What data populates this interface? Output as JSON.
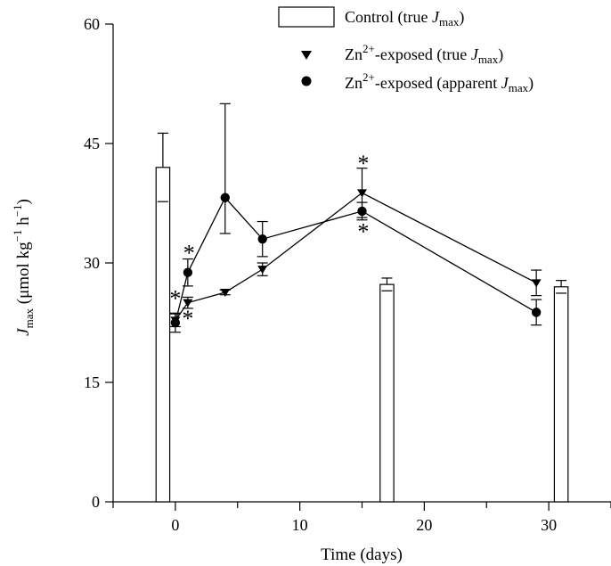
{
  "chart_data": {
    "type": "bar+line",
    "xlabel": "Time (days)",
    "ylabel": {
      "main": "J",
      "sub": "max",
      "units": " (μmol kg",
      "sup1": "−1",
      "units2": " h",
      "sup2": "−1",
      "close": ")"
    },
    "xlim": [
      -5,
      35
    ],
    "ylim": [
      0,
      60
    ],
    "xticks": [
      0,
      10,
      20,
      30
    ],
    "xminor": [
      -5,
      0,
      5,
      10,
      15,
      20,
      25,
      30,
      35
    ],
    "yticks": [
      0,
      15,
      30,
      45,
      60
    ],
    "legend": {
      "position": "top-right",
      "entries": [
        {
          "marker": "open-bar",
          "text": "Control (true ",
          "j": "J",
          "sub": "max",
          "tail": ")"
        },
        {
          "marker": "triangle-down",
          "pre": "Zn",
          "sup": "2+",
          "text": "-exposed (true ",
          "j": "J",
          "sub": "max",
          "tail": ")"
        },
        {
          "marker": "circle",
          "pre": "Zn",
          "sup": "2+",
          "text": "-exposed (apparent ",
          "j": "J",
          "sub": "max",
          "tail": ")"
        }
      ]
    },
    "control_bars": [
      {
        "x": -1,
        "value": 42,
        "err": 4.3
      },
      {
        "x": 17,
        "value": 27.3,
        "err": 0.8
      },
      {
        "x": 31,
        "value": 27,
        "err": 0.8
      }
    ],
    "series": [
      {
        "name": "Zn2+-exposed (true Jmax)",
        "marker": "triangle-down",
        "points": [
          {
            "x": 0,
            "y": 22.8,
            "err": 0.8
          },
          {
            "x": 1,
            "y": 25,
            "err": 0.7
          },
          {
            "x": 4,
            "y": 26.3,
            "err": 0.3
          },
          {
            "x": 7,
            "y": 29.2,
            "err": 0.8
          },
          {
            "x": 15,
            "y": 38.8,
            "err": 3.1
          },
          {
            "x": 29,
            "y": 27.5,
            "err": 1.6
          }
        ]
      },
      {
        "name": "Zn2+-exposed (apparent Jmax)",
        "marker": "circle",
        "points": [
          {
            "x": 0,
            "y": 22.5,
            "err": 1.2
          },
          {
            "x": 1,
            "y": 28.8,
            "err": 1.7
          },
          {
            "x": 4,
            "y": 38.2,
            "err": 11.8,
            "err_low": 4.5
          },
          {
            "x": 7,
            "y": 33,
            "err": 2.2
          },
          {
            "x": 15,
            "y": 36.5,
            "err": 1.1
          },
          {
            "x": 29,
            "y": 23.8,
            "err": 1.6
          }
        ]
      }
    ],
    "significance": [
      {
        "x": 1.1,
        "y": 31.6,
        "label": "*"
      },
      {
        "x": 0.0,
        "y": 25.9,
        "label": "*"
      },
      {
        "x": 1.0,
        "y": 23.4,
        "label": "*"
      },
      {
        "x": 15.1,
        "y": 42.9,
        "label": "*"
      },
      {
        "x": 15.1,
        "y": 34.3,
        "label": "*"
      }
    ]
  }
}
